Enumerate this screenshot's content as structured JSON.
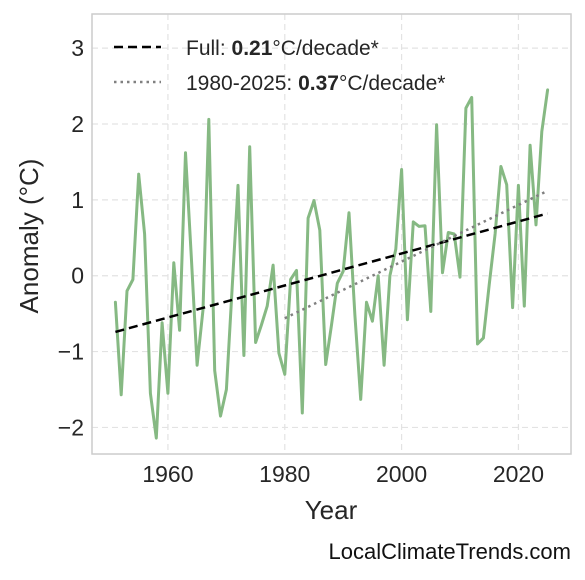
{
  "chart_data": {
    "type": "line",
    "xlabel": "Year",
    "ylabel": "Anomaly (°C)",
    "xlim": [
      1947,
      2029
    ],
    "ylim": [
      -2.35,
      3.45
    ],
    "xticks": [
      1960,
      1980,
      2000,
      2020
    ],
    "yticks": [
      -2,
      -1,
      0,
      1,
      2,
      3
    ],
    "grid": true,
    "legend_position": "top-left",
    "colors": {
      "anomaly": "#86b983",
      "trend_full": "#000000",
      "trend_recent": "#808080",
      "frame": "#cccccc",
      "grid": "#e3e3e3"
    },
    "series": [
      {
        "x": [
          1951,
          1952,
          1953,
          1954,
          1955,
          1956,
          1957,
          1958,
          1959,
          1960,
          1961,
          1962,
          1963,
          1964,
          1965,
          1966,
          1967,
          1968,
          1969,
          1970,
          1971,
          1972,
          1973,
          1974,
          1975,
          1976,
          1977,
          1978,
          1979,
          1980,
          1981,
          1982,
          1983,
          1984,
          1985,
          1986,
          1987,
          1988,
          1989,
          1990,
          1991,
          1992,
          1993,
          1994,
          1995,
          1996,
          1997,
          1998,
          1999,
          2000,
          2001,
          2002,
          2003,
          2004,
          2005,
          2006,
          2007,
          2008,
          2009,
          2010,
          2011,
          2012,
          2013,
          2014,
          2015,
          2016,
          2017,
          2018,
          2019,
          2020,
          2021,
          2022,
          2023,
          2024,
          2025
        ],
        "values": [
          -0.35,
          -1.57,
          -0.2,
          -0.05,
          1.34,
          0.55,
          -1.55,
          -2.14,
          -0.62,
          -1.55,
          0.17,
          -0.72,
          1.62,
          0.25,
          -1.18,
          -0.45,
          2.06,
          -1.25,
          -1.85,
          -1.5,
          -0.15,
          1.19,
          -1.05,
          1.7,
          -0.88,
          -0.65,
          -0.4,
          0.14,
          -1.02,
          -1.3,
          -0.05,
          0.07,
          -1.81,
          0.76,
          0.99,
          0.6,
          -1.17,
          -0.65,
          -0.1,
          0.06,
          0.83,
          -0.52,
          -1.63,
          -0.35,
          -0.6,
          0.0,
          -1.18,
          0.0,
          0.35,
          1.4,
          -0.58,
          0.71,
          0.65,
          0.66,
          -0.47,
          1.99,
          0.04,
          0.57,
          0.55,
          -0.02,
          2.21,
          2.35,
          -0.9,
          -0.82,
          -0.12,
          0.55,
          1.44,
          1.2,
          -0.42,
          1.19,
          -0.4,
          1.72,
          0.67,
          1.9,
          2.45
        ]
      },
      {
        "name": "Full: 0.21°C/decade*",
        "x": [
          1951,
          2025
        ],
        "values": [
          -0.74,
          0.82
        ]
      },
      {
        "name": "1980-2025: 0.37°C/decade*",
        "x": [
          1980,
          2025
        ],
        "values": [
          -0.56,
          1.12
        ]
      }
    ]
  },
  "legend": [
    {
      "prefix": "Full: ",
      "bold": "0.21",
      "suffix": "°C/decade*"
    },
    {
      "prefix": "1980-2025: ",
      "bold": "0.37",
      "suffix": "°C/decade*"
    }
  ],
  "watermark": "LocalClimateTrends.com"
}
